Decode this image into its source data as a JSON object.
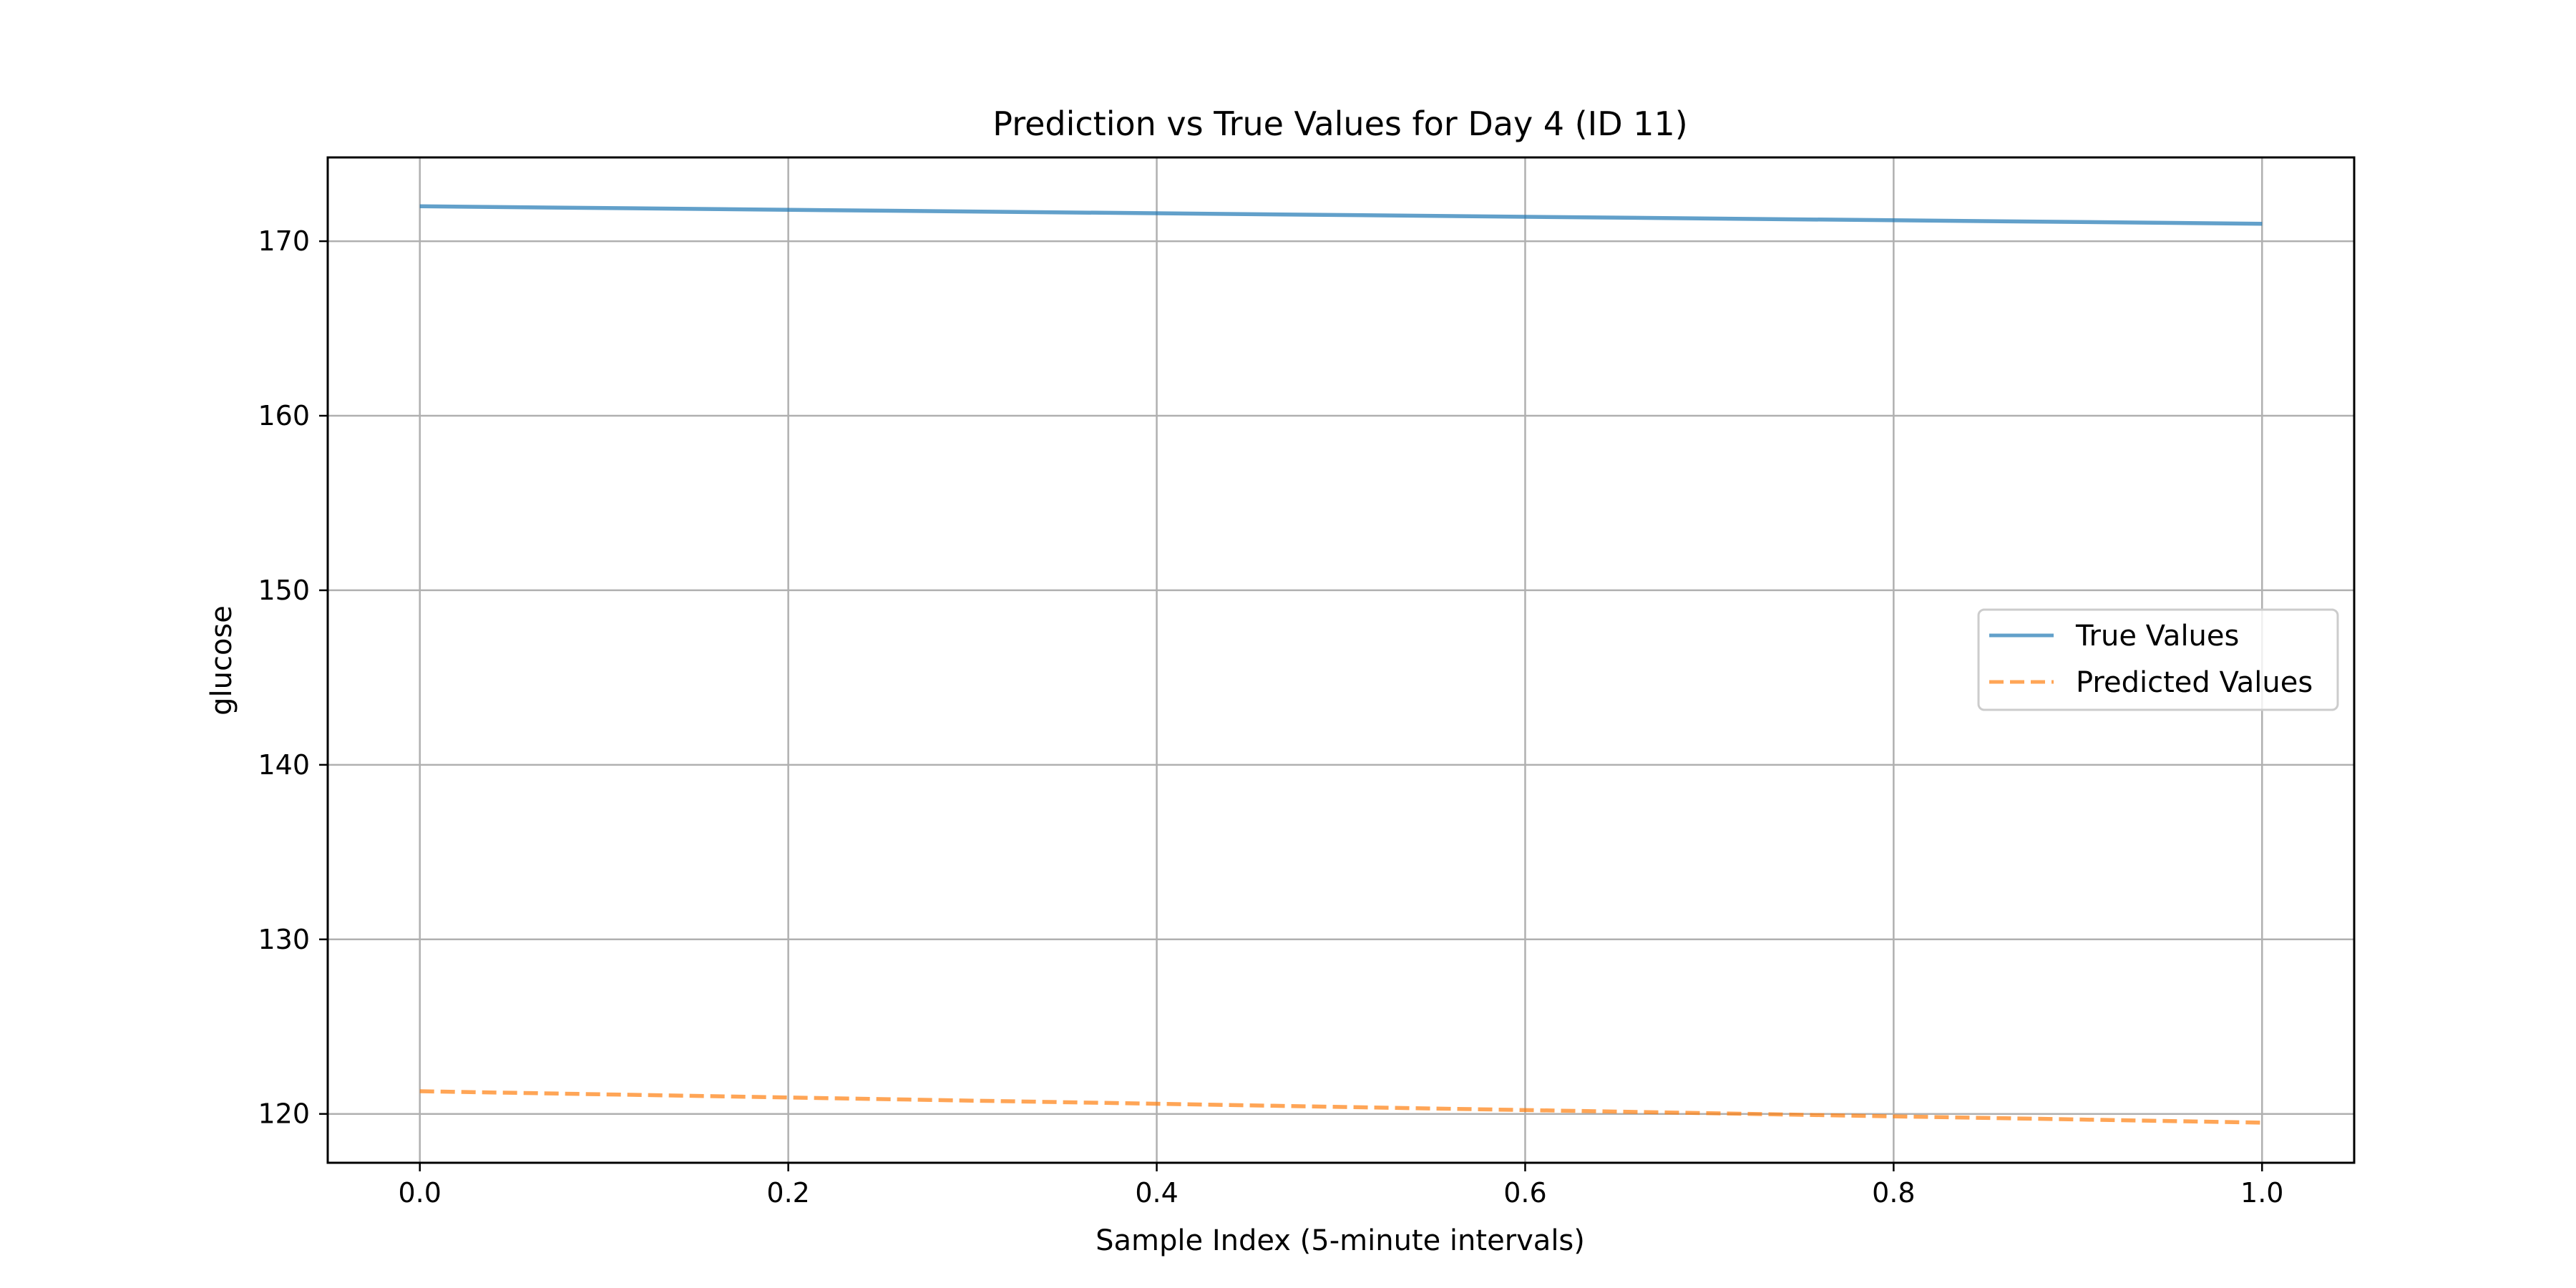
{
  "chart_data": {
    "type": "line",
    "title": "Prediction vs True Values for Day 4 (ID 11)",
    "xlabel": "Sample Index (5-minute intervals)",
    "ylabel": "glucose",
    "xlim": [
      -0.05,
      1.05
    ],
    "ylim": [
      117.2,
      174.8
    ],
    "xticks": [
      "0.0",
      "0.2",
      "0.4",
      "0.6",
      "0.8",
      "1.0"
    ],
    "yticks": [
      "120",
      "130",
      "140",
      "150",
      "160",
      "170"
    ],
    "grid": true,
    "legend_position": "center-right",
    "series": [
      {
        "name": "True Values",
        "color": "#1f77b4",
        "style": "solid",
        "x": [
          0,
          1
        ],
        "y": [
          172.0,
          171.0
        ]
      },
      {
        "name": "Predicted Values",
        "color": "#ff7f0e",
        "style": "dashed",
        "x": [
          0,
          1
        ],
        "y": [
          121.3,
          119.5
        ]
      }
    ]
  }
}
